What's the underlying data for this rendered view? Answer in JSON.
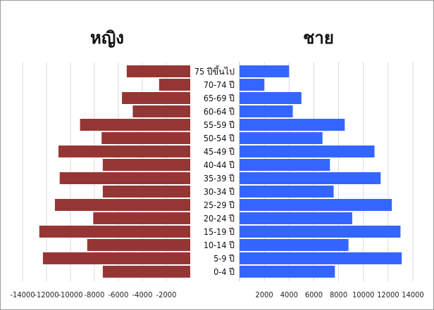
{
  "chart_data": {
    "type": "bar",
    "orientation": "horizontal",
    "subtype": "population-pyramid",
    "categories": [
      "75 ปีขึ้นไป",
      "70-74 ปี",
      "65-69 ปี",
      "60-64 ปี",
      "55-59 ปี",
      "50-54 ปี",
      "45-49 ปี",
      "40-44 ปี",
      "35-39 ปี",
      "30-34 ปี",
      "25-29 ปี",
      "20-24 ปี",
      "15-19 ปี",
      "10-14 ปี",
      "5-9 ปี",
      "0-4 ปี"
    ],
    "series": [
      {
        "name": "หญิง",
        "color": "#963634",
        "values": [
          -5300,
          -2600,
          -5700,
          -4800,
          -9200,
          -7400,
          -11000,
          -7300,
          -10900,
          -7300,
          -11300,
          -8100,
          -12600,
          -8600,
          -12300,
          -7300
        ]
      },
      {
        "name": "ชาย",
        "color": "#3366ff",
        "values": [
          4000,
          2000,
          5000,
          4300,
          8500,
          6700,
          10900,
          7300,
          11400,
          7600,
          12300,
          9100,
          13000,
          8800,
          13100,
          7700
        ]
      }
    ],
    "left_axis": {
      "ticks": [
        -14000,
        -12000,
        -10000,
        -8000,
        -6000,
        -4000,
        -2000
      ],
      "range": [
        -14000,
        0
      ]
    },
    "right_axis": {
      "ticks": [
        2000,
        4000,
        6000,
        8000,
        10000,
        12000,
        14000
      ],
      "range": [
        0,
        14000
      ]
    },
    "grid": "vertical"
  }
}
